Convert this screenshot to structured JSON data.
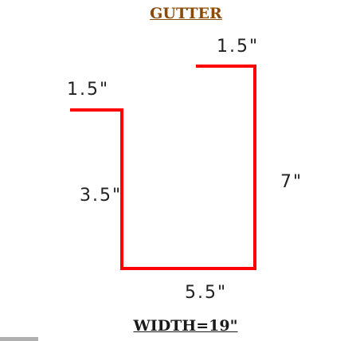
{
  "title": "GUTTER",
  "footer": "WIDTH=19\"",
  "dimensions": {
    "top_right_lip": "1.5\"",
    "top_left_lip": "1.5\"",
    "left_wall": "3.5\"",
    "right_wall": "7\"",
    "bottom": "5.5\""
  },
  "colors": {
    "profile_line": "#ff0000",
    "title": "#8a4b0a",
    "text": "#222222"
  }
}
